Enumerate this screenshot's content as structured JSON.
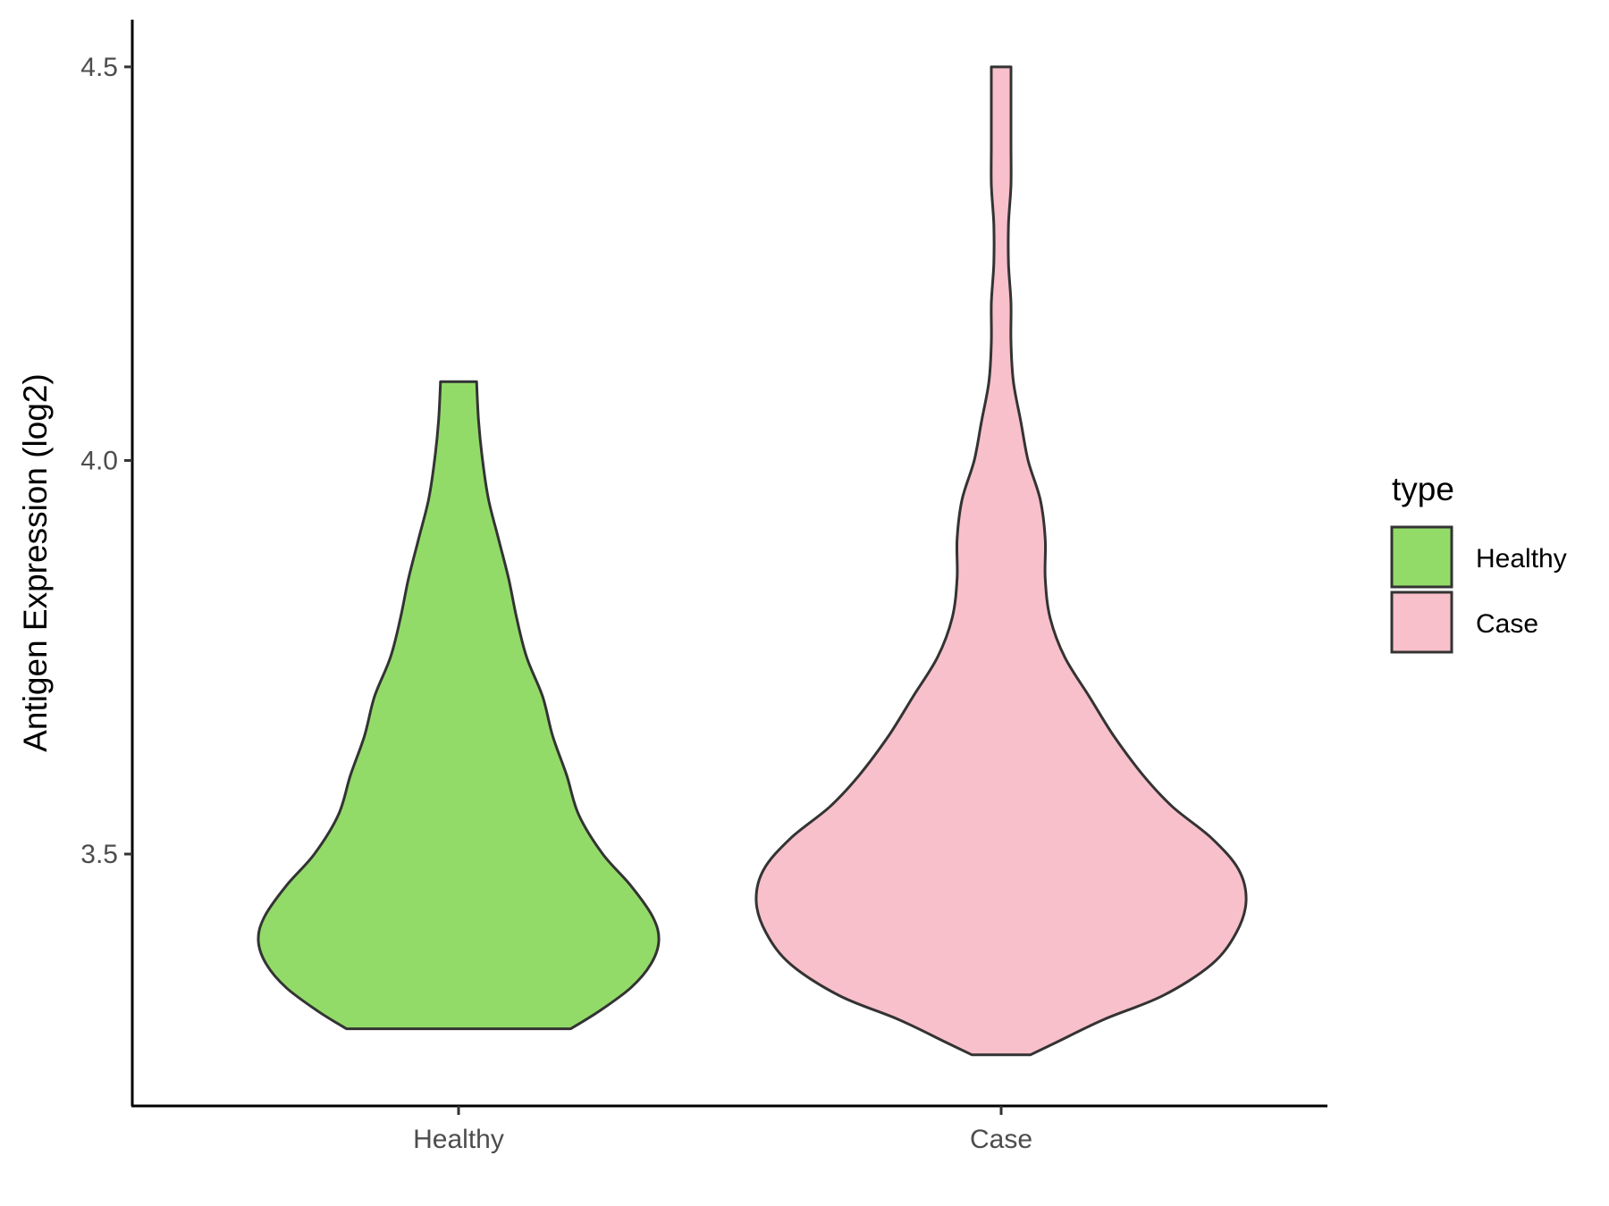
{
  "chart_data": {
    "type": "violin",
    "title": "",
    "xlabel": "",
    "ylabel": "Antigen Expression (log2)",
    "ylim": [
      3.18,
      4.56
    ],
    "yticks": [
      "3.5",
      "4.0",
      "4.5"
    ],
    "grid": false,
    "legend": {
      "title": "type",
      "position": "right",
      "entries": [
        {
          "label": "Healthy",
          "color": "#93DB69"
        },
        {
          "label": "Case",
          "color": "#F8C0CB"
        }
      ]
    },
    "categories": [
      "Healthy",
      "Case"
    ],
    "series": [
      {
        "category": "Healthy",
        "color": "#93DB69",
        "min": 3.278,
        "max": 4.1,
        "density_profile": [
          [
            3.278,
            0.56
          ],
          [
            3.3,
            0.7
          ],
          [
            3.33,
            0.86
          ],
          [
            3.36,
            0.96
          ],
          [
            3.39,
            1.0
          ],
          [
            3.42,
            0.97
          ],
          [
            3.46,
            0.86
          ],
          [
            3.5,
            0.72
          ],
          [
            3.55,
            0.6
          ],
          [
            3.6,
            0.54
          ],
          [
            3.65,
            0.47
          ],
          [
            3.7,
            0.42
          ],
          [
            3.75,
            0.34
          ],
          [
            3.8,
            0.29
          ],
          [
            3.85,
            0.25
          ],
          [
            3.9,
            0.2
          ],
          [
            3.95,
            0.15
          ],
          [
            4.0,
            0.12
          ],
          [
            4.05,
            0.1
          ],
          [
            4.1,
            0.09
          ]
        ]
      },
      {
        "category": "Case",
        "color": "#F8C0CB",
        "min": 3.245,
        "max": 4.5,
        "density_profile": [
          [
            3.245,
            0.12
          ],
          [
            3.26,
            0.22
          ],
          [
            3.29,
            0.42
          ],
          [
            3.32,
            0.66
          ],
          [
            3.36,
            0.86
          ],
          [
            3.4,
            0.96
          ],
          [
            3.44,
            1.0
          ],
          [
            3.48,
            0.97
          ],
          [
            3.52,
            0.86
          ],
          [
            3.56,
            0.7
          ],
          [
            3.6,
            0.58
          ],
          [
            3.65,
            0.46
          ],
          [
            3.7,
            0.36
          ],
          [
            3.75,
            0.26
          ],
          [
            3.8,
            0.2
          ],
          [
            3.85,
            0.18
          ],
          [
            3.9,
            0.18
          ],
          [
            3.95,
            0.16
          ],
          [
            4.0,
            0.11
          ],
          [
            4.05,
            0.08
          ],
          [
            4.1,
            0.05
          ],
          [
            4.15,
            0.04
          ],
          [
            4.2,
            0.04
          ],
          [
            4.25,
            0.03
          ],
          [
            4.3,
            0.03
          ],
          [
            4.35,
            0.04
          ],
          [
            4.4,
            0.04
          ],
          [
            4.45,
            0.04
          ],
          [
            4.5,
            0.04
          ]
        ]
      }
    ]
  }
}
